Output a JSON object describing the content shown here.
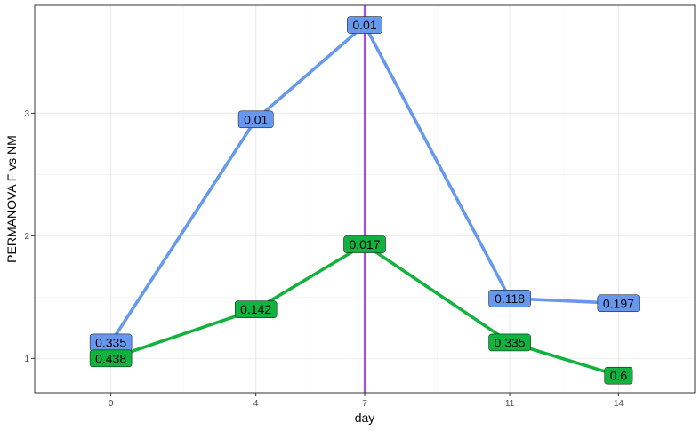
{
  "chart_data": {
    "type": "line",
    "xlabel": "day",
    "ylabel": "PERMANOVA F vs NM",
    "x_ticks": [
      0,
      4,
      7,
      11,
      14
    ],
    "y_ticks": [
      1,
      2,
      3
    ],
    "xlim": [
      -2.1,
      16.1
    ],
    "ylim": [
      0.72,
      3.88
    ],
    "grid": true,
    "vertical_line": {
      "x": 7,
      "color": "#A64DE6"
    },
    "series": [
      {
        "color": "#6699EE",
        "x": [
          0,
          4,
          7,
          11,
          14
        ],
        "y": [
          1.13,
          2.95,
          3.72,
          1.49,
          1.45
        ],
        "labels": [
          "0.335",
          "0.01",
          "0.01",
          "0.118",
          "0.197"
        ]
      },
      {
        "color": "#11B33E",
        "x": [
          0,
          4,
          7,
          11,
          14
        ],
        "y": [
          1.0,
          1.4,
          1.93,
          1.13,
          0.86
        ],
        "labels": [
          "0.438",
          "0.142",
          "0.017",
          "0.335",
          "0.6"
        ]
      }
    ]
  }
}
